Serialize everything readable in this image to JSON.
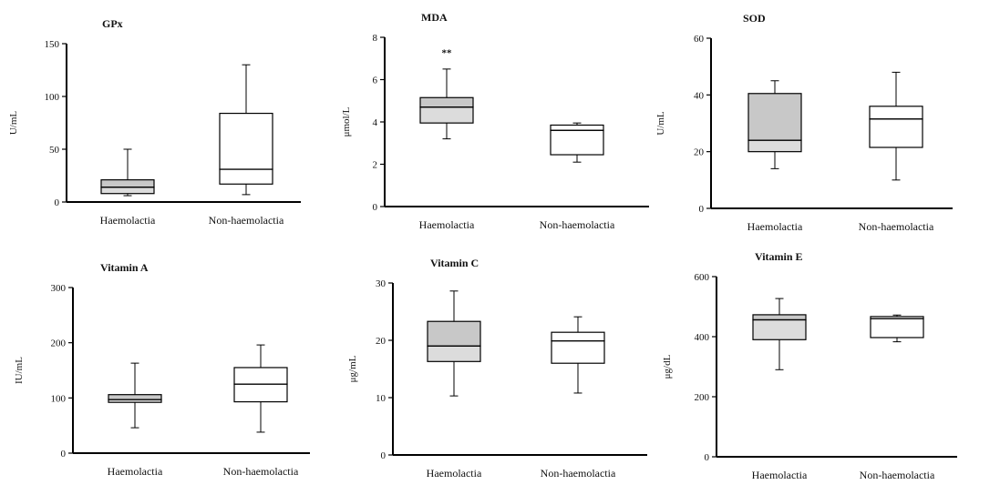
{
  "chart_data": [
    {
      "type": "box",
      "title": "GPx",
      "ylabel": "U/mL",
      "ylim": [
        0,
        150
      ],
      "yticks": [
        0,
        50,
        100,
        150
      ],
      "categories": [
        "Haemolactia",
        "Non-haemolactia"
      ],
      "boxes": [
        {
          "min": 6,
          "q1": 8,
          "median": 14,
          "q3": 21,
          "max": 50,
          "fill": "#c8c8c8"
        },
        {
          "min": 7,
          "q1": 17,
          "median": 31,
          "q3": 84,
          "max": 130,
          "fill": "#ffffff"
        }
      ],
      "annotations": []
    },
    {
      "type": "box",
      "title": "MDA",
      "ylabel": "μmol/L",
      "ylim": [
        0,
        8
      ],
      "yticks": [
        0,
        2,
        4,
        6,
        8
      ],
      "categories": [
        "Haemolactia",
        "Non-haemolactia"
      ],
      "boxes": [
        {
          "min": 3.2,
          "q1": 3.95,
          "median": 4.7,
          "q3": 5.15,
          "max": 6.5,
          "fill": "#c8c8c8"
        },
        {
          "min": 2.1,
          "q1": 2.45,
          "median": 3.6,
          "q3": 3.85,
          "max": 3.95,
          "fill": "#ffffff"
        }
      ],
      "annotations": [
        {
          "text": "**",
          "category": 0,
          "y": 7.3
        }
      ]
    },
    {
      "type": "box",
      "title": "SOD",
      "ylabel": "U/mL",
      "ylim": [
        0,
        60
      ],
      "yticks": [
        0,
        20,
        40,
        60
      ],
      "categories": [
        "Haemolactia",
        "Non-haemolactia"
      ],
      "boxes": [
        {
          "min": 14,
          "q1": 20,
          "median": 24,
          "q3": 40.5,
          "max": 45,
          "fill": "#c8c8c8"
        },
        {
          "min": 10,
          "q1": 21.5,
          "median": 31.5,
          "q3": 36,
          "max": 48,
          "fill": "#ffffff"
        }
      ],
      "annotations": []
    },
    {
      "type": "box",
      "title": "Vitamin A",
      "ylabel": "IU/mL",
      "ylim": [
        0,
        300
      ],
      "yticks": [
        0,
        100,
        200,
        300
      ],
      "categories": [
        "Haemolactia",
        "Non-haemolactia"
      ],
      "boxes": [
        {
          "min": 46,
          "q1": 92,
          "median": 97,
          "q3": 106,
          "max": 163,
          "fill": "#c8c8c8"
        },
        {
          "min": 38,
          "q1": 93,
          "median": 125,
          "q3": 155,
          "max": 196,
          "fill": "#ffffff"
        }
      ],
      "annotations": []
    },
    {
      "type": "box",
      "title": "Vitamin C",
      "ylabel": "μg/mL",
      "ylim": [
        0,
        30
      ],
      "yticks": [
        0,
        10,
        20,
        30
      ],
      "categories": [
        "Haemolactia",
        "Non-haemolactia"
      ],
      "boxes": [
        {
          "min": 10.3,
          "q1": 16.3,
          "median": 19,
          "q3": 23.3,
          "max": 28.6,
          "fill": "#c8c8c8"
        },
        {
          "min": 10.8,
          "q1": 16,
          "median": 19.9,
          "q3": 21.4,
          "max": 24.1,
          "fill": "#ffffff"
        }
      ],
      "annotations": []
    },
    {
      "type": "box",
      "title": "Vitamin E",
      "ylabel": "μg/dL",
      "ylim": [
        0,
        600
      ],
      "yticks": [
        0,
        200,
        400,
        600
      ],
      "categories": [
        "Haemolactia",
        "Non-haemolactia"
      ],
      "boxes": [
        {
          "min": 290,
          "q1": 390,
          "median": 456,
          "q3": 473,
          "max": 527,
          "fill": "#c8c8c8"
        },
        {
          "min": 383,
          "q1": 397,
          "median": 460,
          "q3": 467,
          "max": 472,
          "fill": "#ffffff"
        }
      ],
      "annotations": []
    }
  ]
}
